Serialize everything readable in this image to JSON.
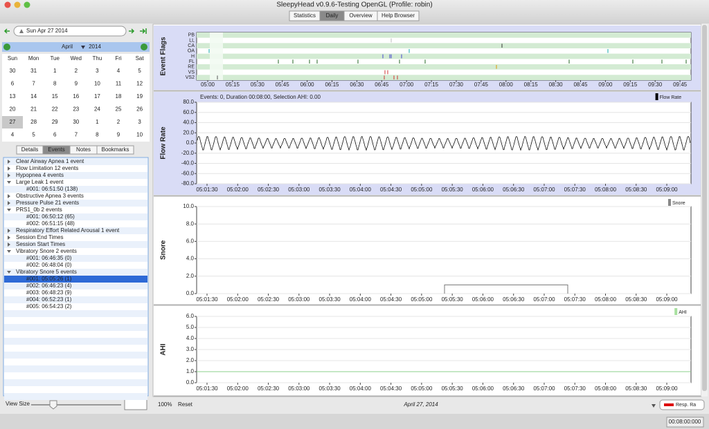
{
  "window": {
    "title": "SleepyHead v0.9.6-Testing OpenGL (Profile: robin)"
  },
  "toolbar": {
    "tabs": [
      "Statistics",
      "Daily",
      "Overview",
      "Help Browser"
    ],
    "selected_tab": 1
  },
  "sidebar": {
    "date": "Sun Apr 27 2014",
    "calendar": {
      "month": "April",
      "year": "2014",
      "weekdays": [
        "Sun",
        "Mon",
        "Tue",
        "Wed",
        "Thu",
        "Fri",
        "Sat"
      ],
      "weeks": [
        [
          30,
          31,
          1,
          2,
          3,
          4,
          5
        ],
        [
          6,
          7,
          8,
          9,
          10,
          11,
          12
        ],
        [
          13,
          14,
          15,
          16,
          17,
          18,
          19
        ],
        [
          20,
          21,
          22,
          23,
          24,
          25,
          26
        ],
        [
          27,
          28,
          29,
          30,
          1,
          2,
          3
        ],
        [
          4,
          5,
          6,
          7,
          8,
          9,
          10
        ]
      ]
    },
    "tabs": [
      "Details",
      "Events",
      "Notes",
      "Bookmarks"
    ],
    "selected_tab": 1,
    "events": [
      {
        "label": "Clear Airway Apnea 1 event",
        "children": []
      },
      {
        "label": "Flow Limitation 12 events",
        "children": []
      },
      {
        "label": "Hypopnea 4 events",
        "children": []
      },
      {
        "label": "Large Leak 1 event",
        "children": [
          "#001: 06:51:50 (138)"
        ]
      },
      {
        "label": "Obstructive Apnea 3 events",
        "children": []
      },
      {
        "label": "Pressure Pulse 21 events",
        "children": []
      },
      {
        "label": "PRS1_0b 2 events",
        "children": [
          "#001: 06:50:12 (65)",
          "#002: 06:51:15 (48)"
        ]
      },
      {
        "label": "Respiratory Effort Related Arousal 1 event",
        "children": []
      },
      {
        "label": "Session End Times",
        "children": []
      },
      {
        "label": "Session Start Times",
        "children": []
      },
      {
        "label": "Vibratory Snore 2 events",
        "children": [
          "#001: 06:46:35 (0)",
          "#002: 06:48:04 (0)"
        ]
      },
      {
        "label": "Vibratory Snore 5 events",
        "children": [
          "#001: 05:05:26 (1)",
          "#002: 06:46:23 (4)",
          "#003: 06:48:23 (9)",
          "#004: 06:52:23 (1)",
          "#005: 06:54:23 (2)"
        ]
      }
    ],
    "selected_event": [
      11,
      0
    ],
    "view_size_label": "View Size"
  },
  "graphs": {
    "event_flags": {
      "title": "Event Flags",
      "channels": [
        "PB",
        "LL",
        "CA",
        "OA",
        "H",
        "FL",
        "RE",
        "VS",
        "VS2"
      ],
      "xticks": [
        "05:00",
        "05:15",
        "05:30",
        "05:45",
        "06:00",
        "06:15",
        "06:30",
        "06:45",
        "07:00",
        "07:15",
        "07:30",
        "07:45",
        "08:00",
        "08:15",
        "08:30",
        "08:45",
        "09:00",
        "09:15",
        "09:30",
        "09:45"
      ]
    },
    "flow_rate": {
      "title": "Flow Rate",
      "header": "Events: 0, Duration 00:08:00, Selection AHI: 0.00",
      "legend": "Flow Rate",
      "legend_color": "#000000",
      "ylim": [
        -80,
        80
      ],
      "yticks": [
        {
          "value": 80,
          "label": "80.0"
        },
        {
          "value": 60,
          "label": "60.0"
        },
        {
          "value": 40,
          "label": "40.0"
        },
        {
          "value": 20,
          "label": "20.0"
        },
        {
          "value": 0,
          "label": "0.0"
        },
        {
          "value": -20,
          "label": "-20.0"
        },
        {
          "value": -40,
          "label": "-40.0"
        },
        {
          "value": -60,
          "label": "-60.0"
        },
        {
          "value": -80,
          "label": "-80.0"
        }
      ],
      "xticks": [
        "05:01:30",
        "05:02:00",
        "05:02:30",
        "05:03:00",
        "05:03:30",
        "05:04:00",
        "05:04:30",
        "05:05:00",
        "05:05:30",
        "05:06:00",
        "05:06:30",
        "05:07:00",
        "05:07:30",
        "05:08:00",
        "05:08:30",
        "05:09:00"
      ]
    },
    "snore": {
      "title": "Snore",
      "legend": "Snore",
      "legend_color": "#888888",
      "ylim": [
        0,
        10
      ],
      "yticks": [
        {
          "value": 10,
          "label": "10.0"
        },
        {
          "value": 8,
          "label": "8.0"
        },
        {
          "value": 6,
          "label": "6.0"
        },
        {
          "value": 4,
          "label": "4.0"
        },
        {
          "value": 2,
          "label": "2.0"
        },
        {
          "value": 0,
          "label": "0.0"
        }
      ],
      "xticks": [
        "05:01:30",
        "05:02:00",
        "05:02:30",
        "05:03:00",
        "05:03:30",
        "05:04:00",
        "05:04:30",
        "05:05:00",
        "05:05:30",
        "05:06:00",
        "05:06:30",
        "05:07:00",
        "05:07:30",
        "05:08:00",
        "05:08:30",
        "05:09:00"
      ]
    },
    "ahi": {
      "title": "AHI",
      "legend": "AHI",
      "legend_color": "#a8e0a0",
      "ylim": [
        0,
        6
      ],
      "yticks": [
        {
          "value": 6,
          "label": "6.0"
        },
        {
          "value": 5,
          "label": "5.0"
        },
        {
          "value": 4,
          "label": "4.0"
        },
        {
          "value": 3,
          "label": "3.0"
        },
        {
          "value": 2,
          "label": "2.0"
        },
        {
          "value": 1,
          "label": "1.0"
        },
        {
          "value": 0,
          "label": "0.0"
        }
      ],
      "xticks": [
        "05:01:30",
        "05:02:00",
        "05:02:30",
        "05:03:00",
        "05:03:30",
        "05:04:00",
        "05:04:30",
        "05:05:00",
        "05:05:30",
        "05:06:00",
        "05:06:30",
        "05:07:00",
        "05:07:30",
        "05:08:00",
        "05:08:30",
        "05:09:00"
      ]
    }
  },
  "footer": {
    "zoom": "100%",
    "reset": "Reset",
    "date": "April 27, 2014",
    "channel": "Resp. Ra"
  },
  "status": {
    "time": "00:08:00:000"
  }
}
